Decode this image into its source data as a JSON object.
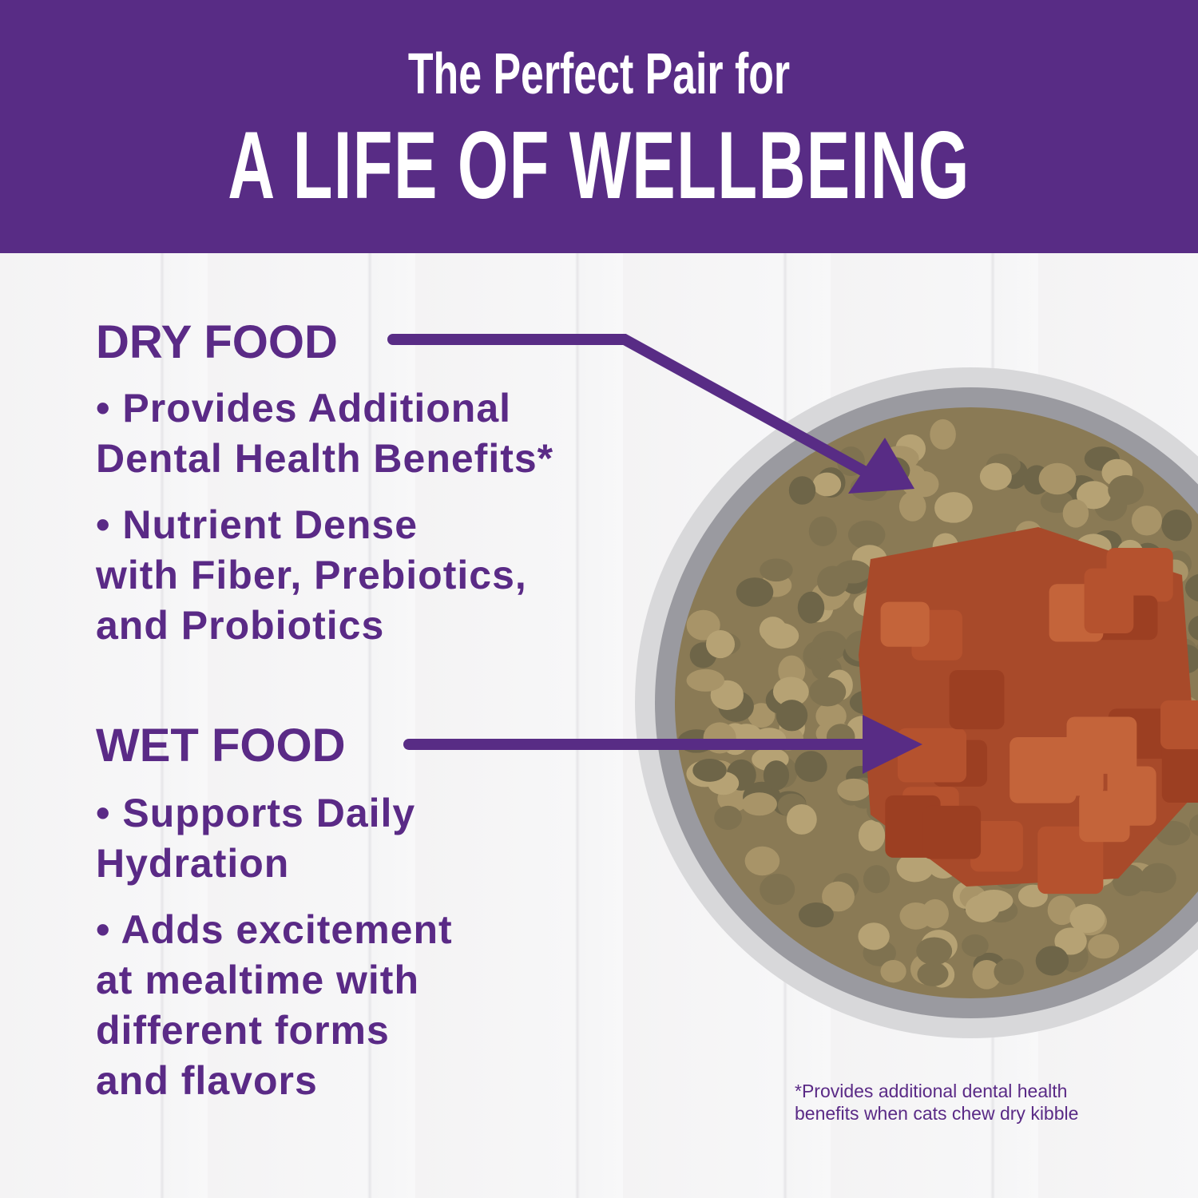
{
  "header": {
    "subtitle": "The Perfect Pair for",
    "title": "A LIFE OF WELLBEING",
    "color": "#582c85"
  },
  "dry": {
    "heading": "DRY FOOD",
    "bullets": [
      [
        "• Provides Additional",
        "Dental Health Benefits*"
      ],
      [
        "• Nutrient Dense",
        "with Fiber, Prebiotics,",
        "and Probiotics"
      ]
    ]
  },
  "wet": {
    "heading": "WET FOOD",
    "bullets": [
      [
        "• Supports Daily",
        "Hydration"
      ],
      [
        "• Adds excitement",
        "at mealtime with",
        "different forms",
        "and flavors"
      ]
    ]
  },
  "footnote": [
    "*Provides additional dental health",
    "benefits when cats chew dry kibble"
  ],
  "text_color": "#5a2a86"
}
